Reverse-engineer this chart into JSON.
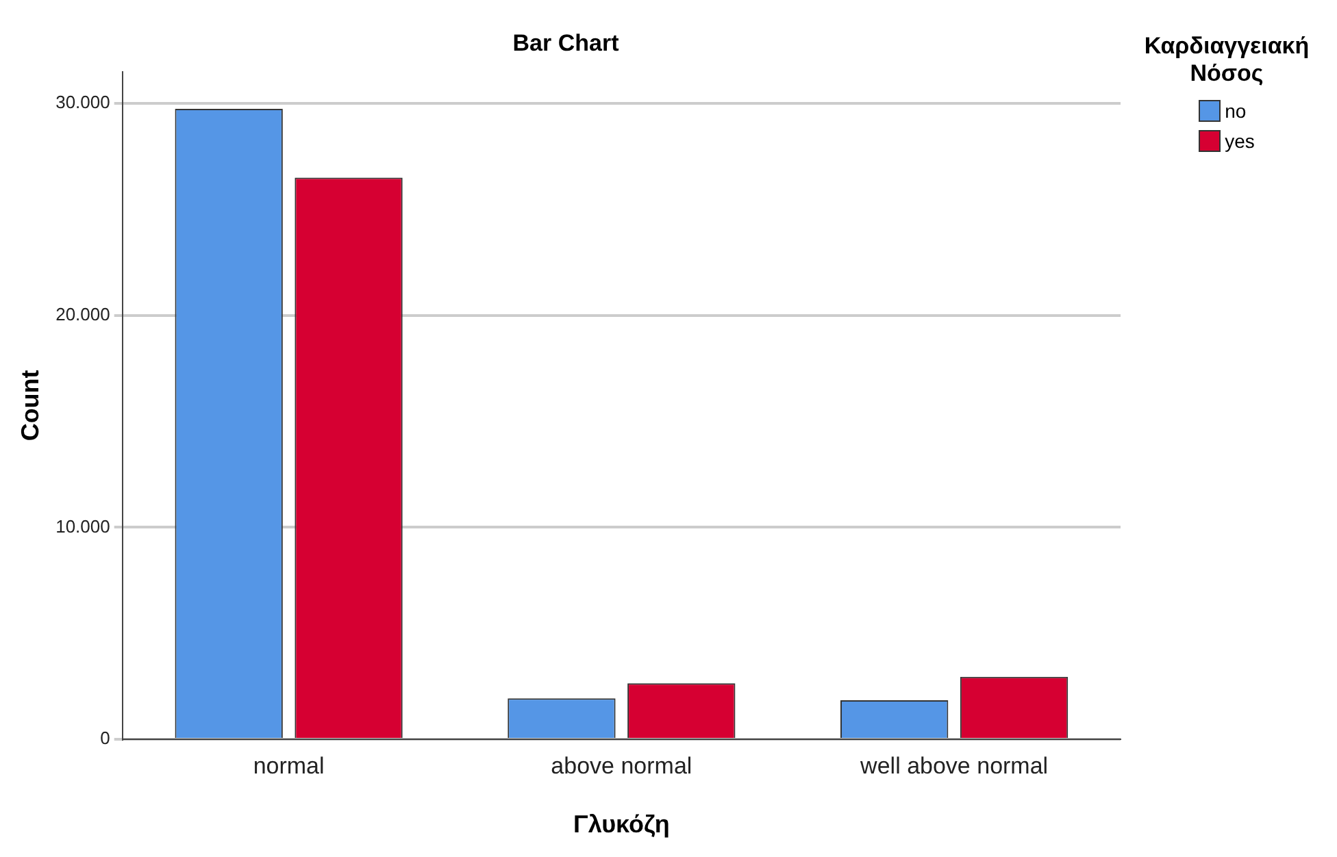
{
  "chart_data": {
    "type": "bar",
    "title": "Bar Chart",
    "xlabel": "Γλυκόζη",
    "ylabel": "Count",
    "legend_title": "Καρδιαγγειακή Νόσος",
    "categories": [
      "normal",
      "above normal",
      "well above normal"
    ],
    "series": [
      {
        "name": "no",
        "color": "#5596e6",
        "values": [
          29750,
          1930,
          1840
        ]
      },
      {
        "name": "yes",
        "color": "#d60032",
        "values": [
          26500,
          2640,
          2950
        ]
      }
    ],
    "ylim": [
      0,
      31500
    ],
    "yticks": [
      {
        "value": 0,
        "label": "0"
      },
      {
        "value": 10000,
        "label": "10.000"
      },
      {
        "value": 20000,
        "label": "20.000"
      },
      {
        "value": 30000,
        "label": "30.000"
      }
    ],
    "grid": "y",
    "legend": "top right"
  }
}
